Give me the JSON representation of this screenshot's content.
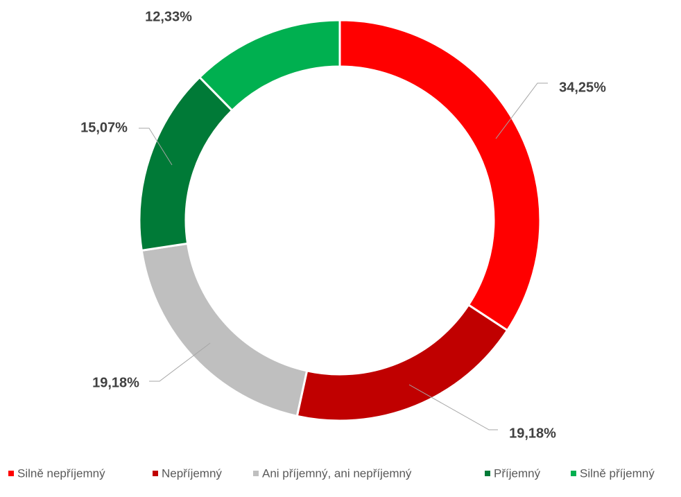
{
  "chart_data": {
    "type": "donut",
    "categories": [
      "Silně nepříjemný",
      "Nepříjemný",
      "Ani příjemný, ani nepříjemný",
      "Příjemný",
      "Silně příjemný"
    ],
    "values": [
      34.25,
      19.18,
      19.18,
      15.07,
      12.33
    ],
    "value_labels": [
      "34,25%",
      "19,18%",
      "19,18%",
      "15,07%",
      "12,33%"
    ],
    "colors": [
      "#ff0000",
      "#c00000",
      "#bfbfbf",
      "#007a37",
      "#00b050"
    ],
    "legend": "bottom"
  }
}
